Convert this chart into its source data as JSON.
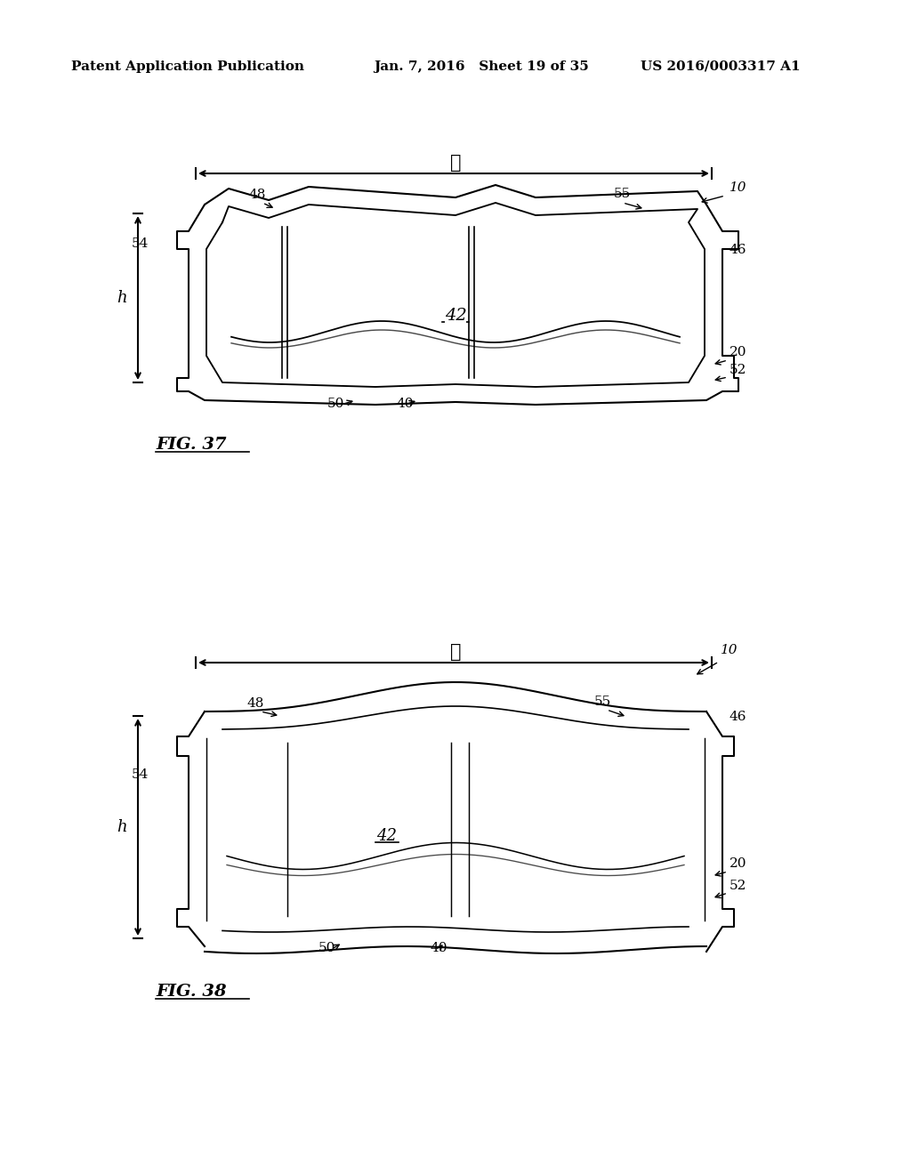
{
  "bg_color": "#ffffff",
  "text_color": "#000000",
  "line_color": "#000000",
  "header_left": "Patent Application Publication",
  "header_mid": "Jan. 7, 2016   Sheet 19 of 35",
  "header_right": "US 2016/0003317 A1",
  "fig37_label": "FIG. 37",
  "fig38_label": "FIG. 38",
  "label_10a": "10",
  "label_10b": "10",
  "label_20a": "20",
  "label_20b": "20",
  "label_40a": "40",
  "label_40b": "40",
  "label_42a": "42",
  "label_42b": "42",
  "label_46a": "46",
  "label_46b": "46",
  "label_48a": "48",
  "label_48b": "48",
  "label_50a": "50",
  "label_50b": "50",
  "label_52a": "52",
  "label_52b": "52",
  "label_54a": "54",
  "label_54b": "54",
  "label_55a": "55",
  "label_55b": "55",
  "label_ell": "ℓ",
  "label_h": "h"
}
